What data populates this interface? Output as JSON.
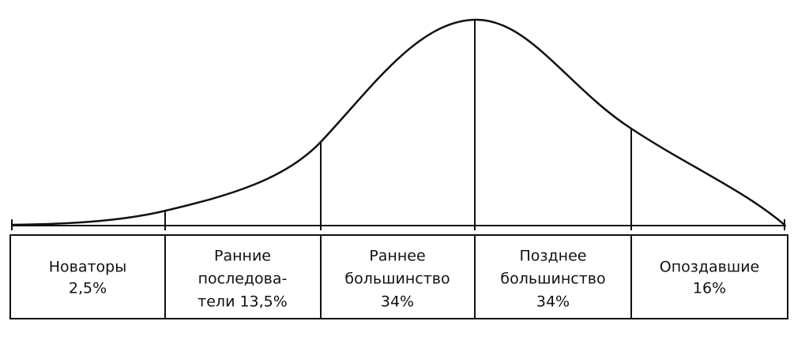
{
  "segments": [
    {
      "lines": [
        "Новаторы",
        "2,5%"
      ]
    },
    {
      "lines": [
        "Ранние",
        "последова-",
        "тели 13,5%"
      ]
    },
    {
      "lines": [
        "Раннее",
        "большинство",
        "34%"
      ]
    },
    {
      "lines": [
        "Позднее",
        "большинство",
        "34%"
      ]
    },
    {
      "lines": [
        "Опоздавшие",
        "16%"
      ]
    }
  ]
}
